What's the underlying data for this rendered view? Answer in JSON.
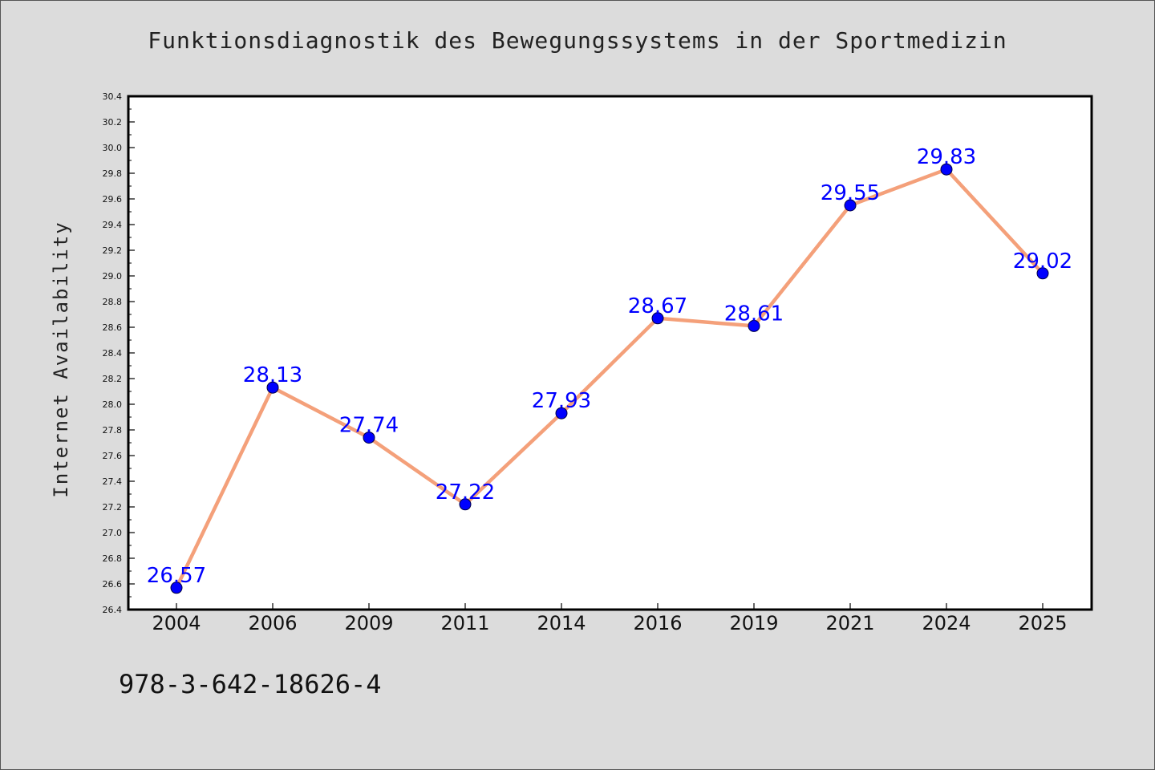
{
  "title": "Funktionsdiagnostik des Bewegungssystems in der Sportmedizin",
  "footer_text": "978-3-642-18626-4",
  "colors": {
    "background": "#dcdcdc",
    "plot_background": "#ffffff",
    "line": "#f4a07a",
    "marker": "#0000ff",
    "data_label": "#0000ff"
  },
  "chart_data": {
    "type": "line",
    "title": "Funktionsdiagnostik des Bewegungssystems in der Sportmedizin",
    "xlabel": "",
    "ylabel": "Internet Availability",
    "categories": [
      "2004",
      "2006",
      "2009",
      "2011",
      "2014",
      "2016",
      "2019",
      "2021",
      "2024",
      "2025"
    ],
    "series": [
      {
        "values": [
          26.57,
          28.13,
          27.74,
          27.22,
          27.93,
          28.67,
          28.61,
          29.55,
          29.83,
          29.02
        ],
        "data_labels": [
          "26.57",
          "28.13",
          "27.74",
          "27.22",
          "27.93",
          "28.67",
          "28.61",
          "29.55",
          "29.83",
          "29.02"
        ]
      }
    ],
    "ylim": [
      26.4,
      30.4
    ],
    "yticks": [
      "26.4",
      "26.6",
      "26.8",
      "27.0",
      "27.2",
      "27.4",
      "27.6",
      "27.8",
      "28.0",
      "28.2",
      "28.4",
      "28.6",
      "28.8",
      "29.0",
      "29.2",
      "29.4",
      "29.6",
      "29.8",
      "30.0",
      "30.2",
      "30.4"
    ],
    "grid": false,
    "legend": "none"
  }
}
